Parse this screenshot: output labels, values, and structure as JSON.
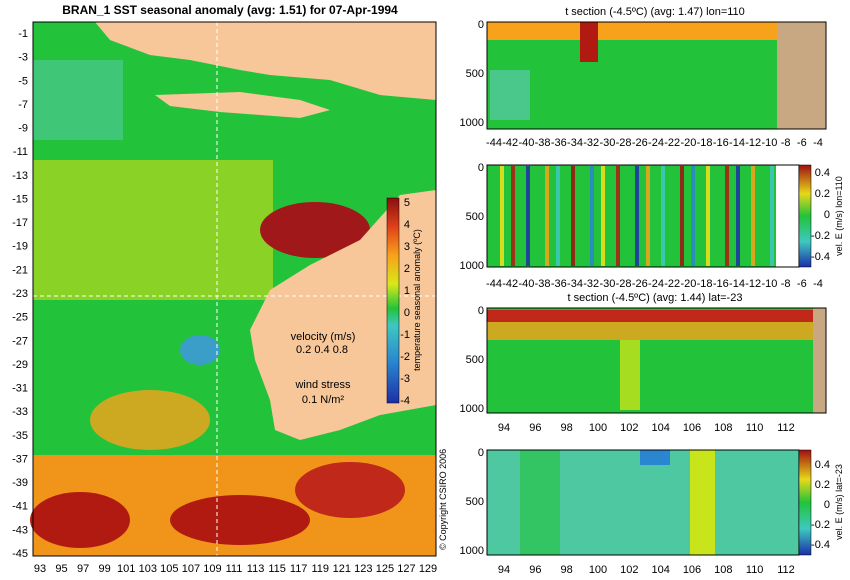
{
  "colors": {
    "land": "#f7c79a",
    "landbrown": "#c8a882",
    "ocean_green": "#22c33a",
    "warm": "#f7a21a",
    "hot": "#b01a10",
    "cool": "#3a9ec8",
    "cold": "#1d2fa8",
    "white": "#ffffff"
  },
  "chart_data": [
    {
      "type": "heatmap",
      "title": "BRAN_1 SST seasonal anomaly (avg: 1.51) for 07-Apr-1994",
      "xticks": [
        "93",
        "95",
        "97",
        "99",
        "101",
        "103",
        "105",
        "107",
        "109",
        "111",
        "113",
        "115",
        "117",
        "119",
        "121",
        "123",
        "125",
        "127",
        "129"
      ],
      "yticks": [
        "-1",
        "-3",
        "-5",
        "-7",
        "-9",
        "-11",
        "-13",
        "-15",
        "-17",
        "-19",
        "-21",
        "-23",
        "-25",
        "-27",
        "-29",
        "-31",
        "-33",
        "-35",
        "-37",
        "-39",
        "-41",
        "-43",
        "-45"
      ],
      "xlim": [
        93,
        130
      ],
      "ylim": [
        -45,
        0
      ],
      "colorbar": {
        "label": "temperature seasonal anomaly (ºC)",
        "ticks": [
          "5",
          "4",
          "3",
          "2",
          "1",
          "0",
          "-1",
          "-2",
          "-3",
          "-4"
        ],
        "range": [
          -4,
          5
        ]
      },
      "legend": {
        "velocity_label": "velocity (m/s)",
        "velocity_values": "0.2 0.4 0.8",
        "wind_label": "wind stress",
        "wind_value": "0.1 N/m²"
      },
      "copyright": "© Copyright CSIRO 2006"
    },
    {
      "type": "heatmap",
      "title": "t section (-4.5ºC) (avg: 1.47) lon=110",
      "xticks": [
        "-44",
        "-42",
        "-40",
        "-38",
        "-36",
        "-34",
        "-32",
        "-30",
        "-28",
        "-26",
        "-24",
        "-22",
        "-20",
        "-18",
        "-16",
        "-14",
        "-12",
        "-10",
        "-8",
        "-6",
        "-4"
      ],
      "yticks": [
        "0",
        "500",
        "1000"
      ]
    },
    {
      "type": "heatmap",
      "title": "",
      "xticks": [
        "-44",
        "-42",
        "-40",
        "-38",
        "-36",
        "-34",
        "-32",
        "-30",
        "-28",
        "-26",
        "-24",
        "-22",
        "-20",
        "-18",
        "-16",
        "-14",
        "-12",
        "-10",
        "-8",
        "-6",
        "-4"
      ],
      "yticks": [
        "0",
        "500",
        "1000"
      ],
      "colorbar": {
        "label": "vel. E (m/s) lon=110",
        "ticks": [
          "0.4",
          "0.2",
          "0",
          "-0.2",
          "-0.4"
        ]
      }
    },
    {
      "type": "heatmap",
      "title": "t section (-4.5ºC) (avg: 1.44) lat=-23",
      "xticks": [
        "94",
        "96",
        "98",
        "100",
        "102",
        "104",
        "106",
        "108",
        "110",
        "112"
      ],
      "yticks": [
        "0",
        "500",
        "1000"
      ]
    },
    {
      "type": "heatmap",
      "title": "",
      "xticks": [
        "94",
        "96",
        "98",
        "100",
        "102",
        "104",
        "106",
        "108",
        "110",
        "112"
      ],
      "yticks": [
        "0",
        "500",
        "1000"
      ],
      "colorbar": {
        "label": "vel. E (m/s) lat=-23",
        "ticks": [
          "0.4",
          "0.2",
          "0",
          "-0.2",
          "-0.4"
        ]
      }
    }
  ]
}
